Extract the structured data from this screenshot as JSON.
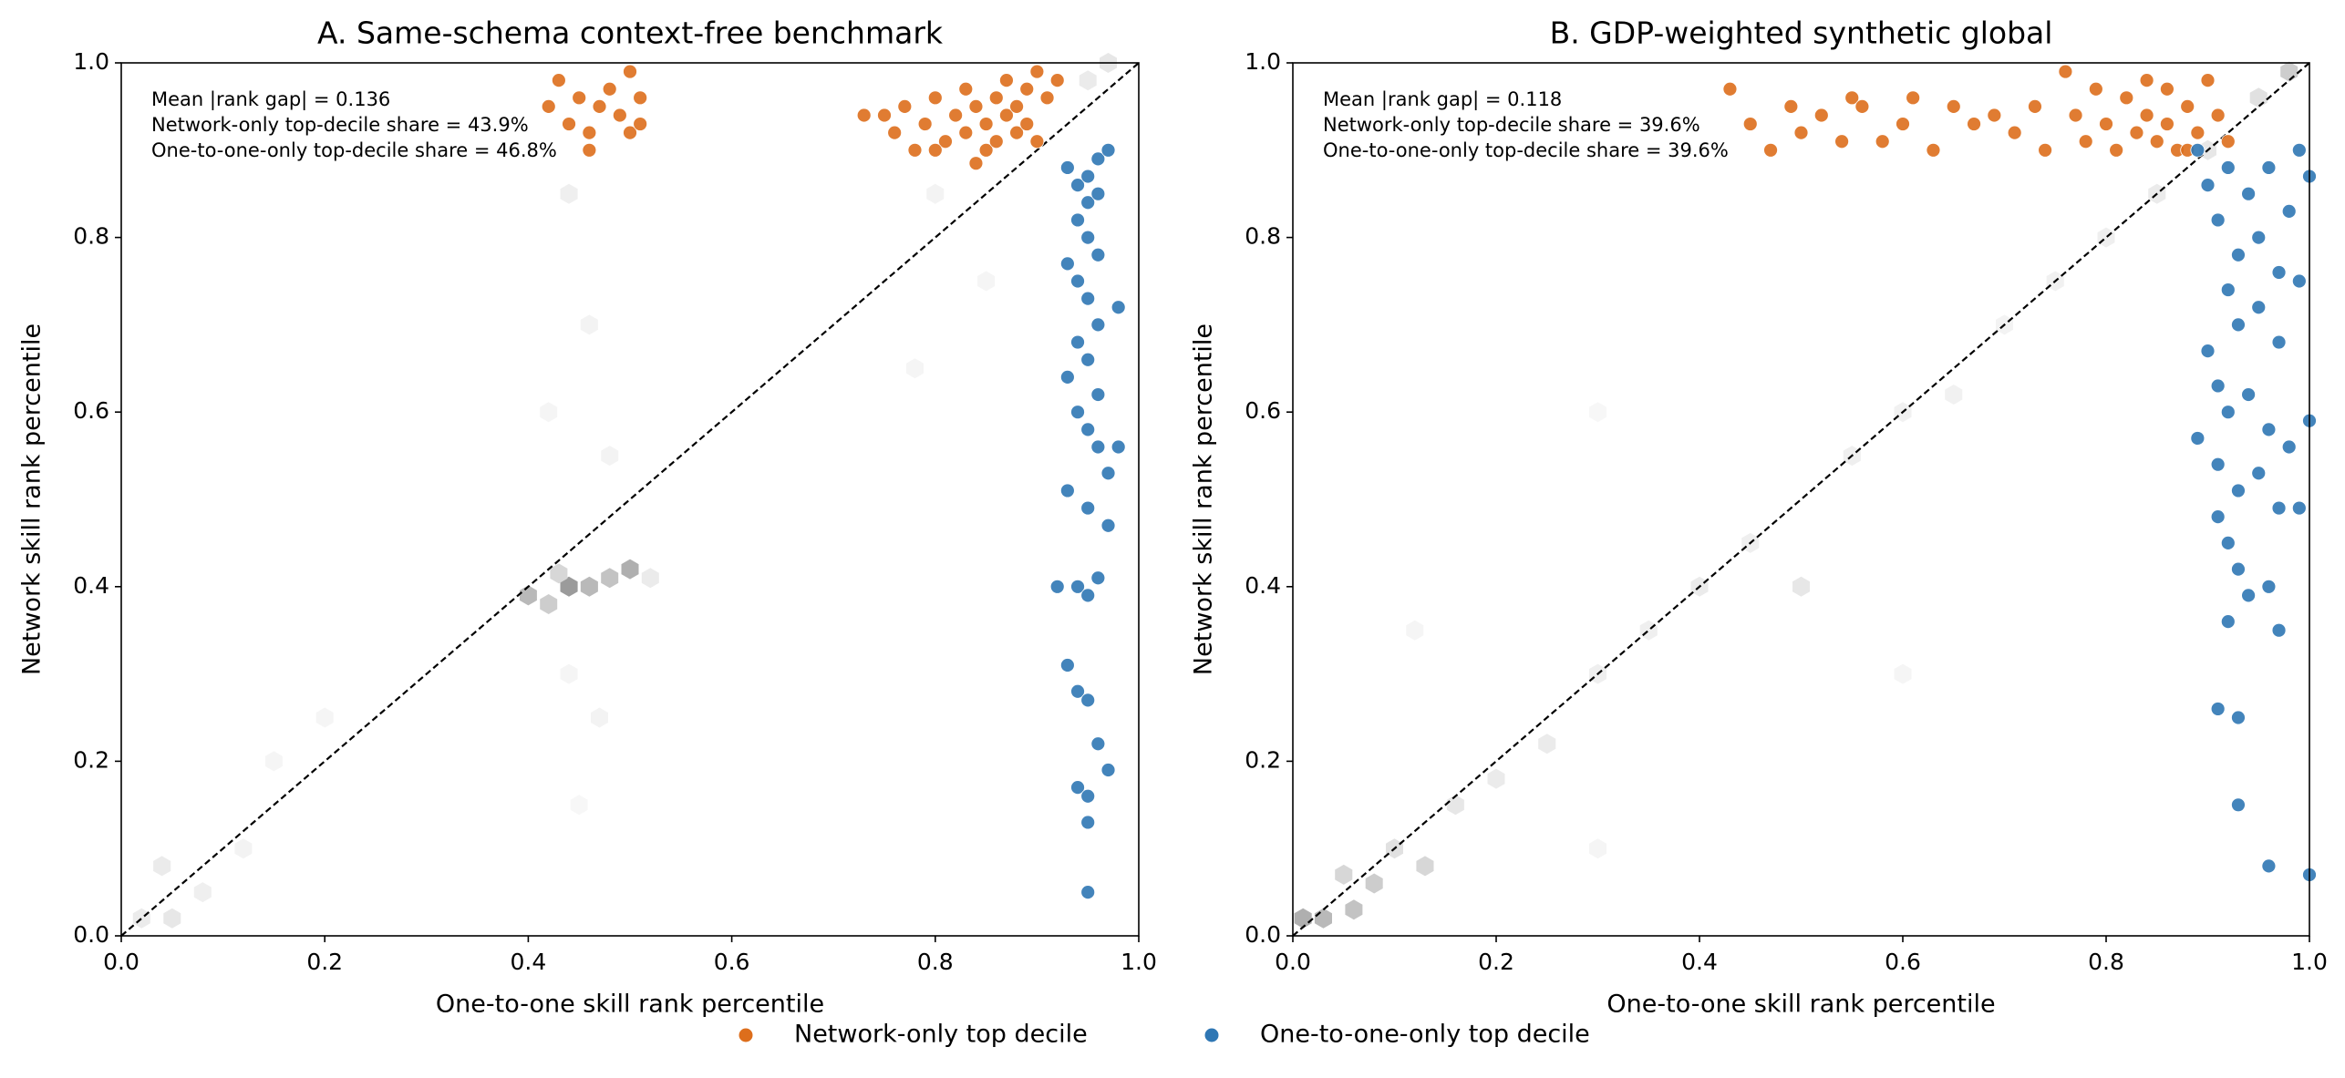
{
  "chart_data": [
    {
      "type": "scatter",
      "title": "A. Same-schema context-free benchmark",
      "x_label": "One-to-one skill rank percentile",
      "y_label": "Network skill rank percentile",
      "annotations": [
        "Mean |rank gap| = 0.136",
        "Network-only top-decile share = 43.9%",
        "One-to-one-only top-decile share = 46.8%"
      ],
      "xlim": [
        0,
        1
      ],
      "ylim": [
        0,
        1
      ],
      "xticks": [
        {
          "value": 0,
          "label": "0.0"
        },
        0.2,
        0.4,
        0.6,
        0.8,
        {
          "value": 1,
          "label": "1.0"
        }
      ],
      "yticks": [
        {
          "value": 0,
          "label": "0.0"
        },
        0.2,
        0.4,
        0.6,
        0.8,
        {
          "value": 1,
          "label": "1.0"
        }
      ],
      "hexbin": {
        "x": [
          0.4,
          0.42,
          0.44,
          0.46,
          0.48,
          0.5,
          0.52,
          0.43,
          0.44,
          0.46,
          0.42,
          0.48,
          0.44,
          0.47,
          0.45,
          0.02,
          0.05,
          0.04,
          0.08,
          0.12,
          0.15,
          0.2,
          0.8,
          0.85,
          0.78,
          0.95,
          0.97
        ],
        "y": [
          0.39,
          0.38,
          0.4,
          0.4,
          0.41,
          0.42,
          0.41,
          0.415,
          0.85,
          0.7,
          0.6,
          0.55,
          0.3,
          0.25,
          0.15,
          0.02,
          0.02,
          0.08,
          0.05,
          0.1,
          0.2,
          0.25,
          0.85,
          0.75,
          0.65,
          0.98,
          1.0
        ],
        "density": [
          0.35,
          0.25,
          0.5,
          0.35,
          0.3,
          0.4,
          0.1,
          0.2,
          0.08,
          0.06,
          0.05,
          0.06,
          0.05,
          0.06,
          0.04,
          0.1,
          0.12,
          0.1,
          0.08,
          0.06,
          0.05,
          0.05,
          0.06,
          0.05,
          0.05,
          0.1,
          0.12
        ]
      },
      "series": [
        {
          "color": "#dd6e1c",
          "x": [
            0.75,
            0.76,
            0.77,
            0.78,
            0.79,
            0.8,
            0.81,
            0.82,
            0.83,
            0.83,
            0.84,
            0.85,
            0.85,
            0.86,
            0.86,
            0.87,
            0.87,
            0.88,
            0.88,
            0.89,
            0.89,
            0.9,
            0.9,
            0.91,
            0.92,
            0.84,
            0.73,
            0.8,
            0.42,
            0.43,
            0.44,
            0.45,
            0.46,
            0.47,
            0.48,
            0.49,
            0.5,
            0.5,
            0.51,
            0.51,
            0.46
          ],
          "values": [
            0.94,
            0.92,
            0.95,
            0.9,
            0.93,
            0.96,
            0.91,
            0.94,
            0.97,
            0.92,
            0.95,
            0.9,
            0.93,
            0.96,
            0.91,
            0.94,
            0.98,
            0.92,
            0.95,
            0.93,
            0.97,
            0.99,
            0.91,
            0.96,
            0.98,
            0.885,
            0.94,
            0.9,
            0.95,
            0.98,
            0.93,
            0.96,
            0.92,
            0.95,
            0.97,
            0.94,
            0.99,
            0.92,
            0.93,
            0.96,
            0.9
          ]
        },
        {
          "color": "#2f77b4",
          "x": [
            0.93,
            0.94,
            0.95,
            0.96,
            0.97,
            0.94,
            0.95,
            0.96,
            0.93,
            0.94,
            0.95,
            0.96,
            0.94,
            0.95,
            0.93,
            0.96,
            0.94,
            0.95,
            0.96,
            0.97,
            0.93,
            0.95,
            0.98,
            0.98,
            0.97,
            0.92,
            0.94,
            0.95,
            0.96,
            0.93,
            0.94,
            0.95,
            0.96,
            0.97,
            0.94,
            0.95,
            0.95,
            0.95,
            0.96,
            0.95
          ],
          "values": [
            0.88,
            0.86,
            0.84,
            0.89,
            0.9,
            0.82,
            0.8,
            0.78,
            0.77,
            0.75,
            0.73,
            0.7,
            0.68,
            0.66,
            0.64,
            0.62,
            0.6,
            0.58,
            0.56,
            0.53,
            0.51,
            0.49,
            0.72,
            0.56,
            0.47,
            0.4,
            0.4,
            0.39,
            0.41,
            0.31,
            0.28,
            0.27,
            0.22,
            0.19,
            0.17,
            0.16,
            0.13,
            0.05,
            0.85,
            0.87
          ]
        }
      ]
    },
    {
      "type": "scatter",
      "title": "B. GDP-weighted synthetic global",
      "x_label": "One-to-one skill rank percentile",
      "y_label": "Network skill rank percentile",
      "annotations": [
        "Mean |rank gap| = 0.118",
        "Network-only top-decile share = 39.6%",
        "One-to-one-only top-decile share = 39.6%"
      ],
      "xlim": [
        0,
        1
      ],
      "ylim": [
        0,
        1
      ],
      "xticks": [
        {
          "value": 0,
          "label": "0.0"
        },
        0.2,
        0.4,
        0.6,
        0.8,
        {
          "value": 1,
          "label": "1.0"
        }
      ],
      "yticks": [
        {
          "value": 0,
          "label": "0.0"
        },
        0.2,
        0.4,
        0.6,
        0.8,
        {
          "value": 1,
          "label": "1.0"
        }
      ],
      "hexbin": {
        "x": [
          0.01,
          0.03,
          0.06,
          0.05,
          0.08,
          0.1,
          0.13,
          0.16,
          0.2,
          0.25,
          0.3,
          0.35,
          0.4,
          0.45,
          0.5,
          0.55,
          0.6,
          0.65,
          0.7,
          0.75,
          0.8,
          0.85,
          0.9,
          0.95,
          0.98,
          0.12,
          0.3,
          0.6,
          0.3
        ],
        "y": [
          0.02,
          0.02,
          0.03,
          0.07,
          0.06,
          0.1,
          0.08,
          0.15,
          0.18,
          0.22,
          0.3,
          0.35,
          0.4,
          0.45,
          0.4,
          0.55,
          0.6,
          0.62,
          0.7,
          0.75,
          0.8,
          0.85,
          0.9,
          0.96,
          0.99,
          0.35,
          0.1,
          0.3,
          0.6
        ],
        "density": [
          0.4,
          0.35,
          0.3,
          0.2,
          0.25,
          0.15,
          0.2,
          0.12,
          0.1,
          0.1,
          0.08,
          0.08,
          0.1,
          0.08,
          0.12,
          0.08,
          0.07,
          0.07,
          0.06,
          0.07,
          0.08,
          0.1,
          0.12,
          0.15,
          0.25,
          0.05,
          0.05,
          0.05,
          0.04
        ]
      },
      "series": [
        {
          "color": "#dd6e1c",
          "x": [
            0.43,
            0.45,
            0.47,
            0.49,
            0.5,
            0.52,
            0.54,
            0.55,
            0.56,
            0.58,
            0.6,
            0.61,
            0.63,
            0.65,
            0.67,
            0.69,
            0.71,
            0.73,
            0.74,
            0.76,
            0.77,
            0.78,
            0.79,
            0.8,
            0.81,
            0.82,
            0.83,
            0.84,
            0.85,
            0.86,
            0.86,
            0.87,
            0.88,
            0.89,
            0.9,
            0.91,
            0.92,
            0.84,
            0.88
          ],
          "values": [
            0.97,
            0.93,
            0.9,
            0.95,
            0.92,
            0.94,
            0.91,
            0.96,
            0.95,
            0.91,
            0.93,
            0.96,
            0.9,
            0.95,
            0.93,
            0.94,
            0.92,
            0.95,
            0.9,
            0.99,
            0.94,
            0.91,
            0.97,
            0.93,
            0.9,
            0.96,
            0.92,
            0.94,
            0.91,
            0.97,
            0.93,
            0.9,
            0.95,
            0.92,
            0.98,
            0.94,
            0.91,
            0.98,
            0.9
          ]
        },
        {
          "color": "#2f77b4",
          "x": [
            0.89,
            0.9,
            0.91,
            0.92,
            0.93,
            0.94,
            0.95,
            0.96,
            0.97,
            0.98,
            0.99,
            1.0,
            0.92,
            0.93,
            0.95,
            0.97,
            0.99,
            0.9,
            0.91,
            0.92,
            0.94,
            0.96,
            0.98,
            1.0,
            0.89,
            0.91,
            0.93,
            0.95,
            0.97,
            0.99,
            0.91,
            0.92,
            0.93,
            0.94,
            0.96,
            0.97,
            0.92,
            0.91,
            0.93,
            0.93,
            0.96,
            1.0
          ],
          "values": [
            0.9,
            0.86,
            0.82,
            0.88,
            0.78,
            0.85,
            0.8,
            0.88,
            0.76,
            0.83,
            0.9,
            0.87,
            0.74,
            0.7,
            0.72,
            0.68,
            0.75,
            0.67,
            0.63,
            0.6,
            0.62,
            0.58,
            0.56,
            0.59,
            0.57,
            0.54,
            0.51,
            0.53,
            0.49,
            0.49,
            0.48,
            0.45,
            0.42,
            0.39,
            0.4,
            0.35,
            0.36,
            0.26,
            0.25,
            0.15,
            0.08,
            0.07
          ]
        }
      ]
    }
  ],
  "legend": [
    {
      "name": "Network-only top decile",
      "color": "#dd6e1c"
    },
    {
      "name": "One-to-one-only top decile",
      "color": "#2f77b4"
    }
  ]
}
